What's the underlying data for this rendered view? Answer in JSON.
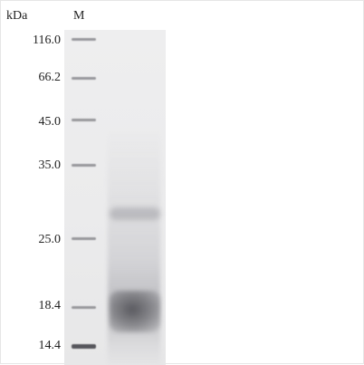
{
  "header": {
    "unit_label": "kDa",
    "marker_lane_label": "M"
  },
  "marker_labels": [
    "116.0",
    "66.2",
    "45.0",
    "35.0",
    "25.0",
    "18.4",
    "14.4"
  ]
}
